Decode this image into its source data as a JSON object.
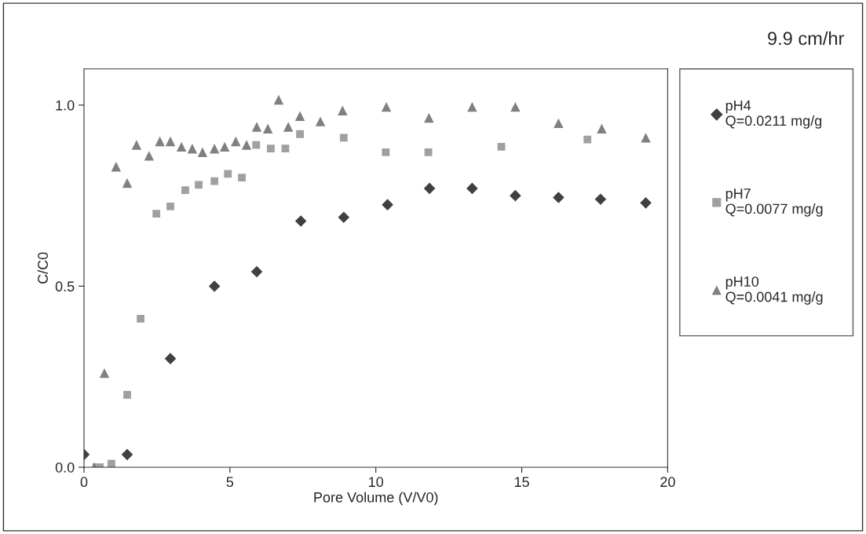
{
  "chart_data": {
    "type": "scatter",
    "title": "9.9 cm/hr",
    "xlabel": "Pore Volume (V/V0)",
    "ylabel": "C/C0",
    "xlim": [
      0,
      20
    ],
    "ylim": [
      0,
      1.1
    ],
    "xticks": [
      0,
      5,
      10,
      15,
      20
    ],
    "yticks": [
      {
        "value": 0,
        "label": "0.0"
      },
      {
        "value": 0.5,
        "label": "0.5"
      },
      {
        "value": 1,
        "label": "1.0"
      }
    ],
    "grid": false,
    "legend": "right",
    "series": [
      {
        "name": "pH4\nQ=0.0211 mg/g",
        "color": "#404040",
        "marker": "diamond",
        "x": [
          0,
          1.48,
          2.96,
          4.47,
          5.92,
          7.43,
          8.9,
          10.4,
          11.84,
          13.3,
          14.78,
          16.26,
          17.7,
          19.25
        ],
        "values": [
          0.035,
          0.035,
          0.3,
          0.5,
          0.54,
          0.68,
          0.69,
          0.725,
          0.77,
          0.77,
          0.75,
          0.745,
          0.74,
          0.73
        ]
      },
      {
        "name": "pH7\nQ=0.0077 mg/g",
        "color": "#a0a0a0",
        "marker": "square",
        "x": [
          0.43,
          0.54,
          0.94,
          1.48,
          1.94,
          2.48,
          2.96,
          3.47,
          3.93,
          4.47,
          4.93,
          5.41,
          5.9,
          6.4,
          6.9,
          7.4,
          8.9,
          10.34,
          11.8,
          14.3,
          17.25
        ],
        "values": [
          0.0,
          0.0,
          0.01,
          0.2,
          0.41,
          0.7,
          0.72,
          0.765,
          0.78,
          0.79,
          0.81,
          0.8,
          0.89,
          0.88,
          0.88,
          0.92,
          0.91,
          0.87,
          0.87,
          0.885,
          0.905
        ]
      },
      {
        "name": "pH10\nQ=0.0041 mg/g",
        "color": "#808080",
        "marker": "triangle",
        "x": [
          0.35,
          0.7,
          1.1,
          1.48,
          1.8,
          2.23,
          2.6,
          2.96,
          3.34,
          3.71,
          4.06,
          4.47,
          4.82,
          5.2,
          5.57,
          5.92,
          6.3,
          6.67,
          7.0,
          7.4,
          8.1,
          8.86,
          10.36,
          11.82,
          13.3,
          14.78,
          16.26,
          17.74,
          19.25
        ],
        "values": [
          0.0,
          0.26,
          0.83,
          0.785,
          0.89,
          0.86,
          0.9,
          0.9,
          0.885,
          0.88,
          0.87,
          0.88,
          0.885,
          0.9,
          0.89,
          0.94,
          0.935,
          1.015,
          0.94,
          0.97,
          0.955,
          0.985,
          0.995,
          0.965,
          0.995,
          0.995,
          0.95,
          0.935,
          0.91
        ]
      }
    ]
  }
}
